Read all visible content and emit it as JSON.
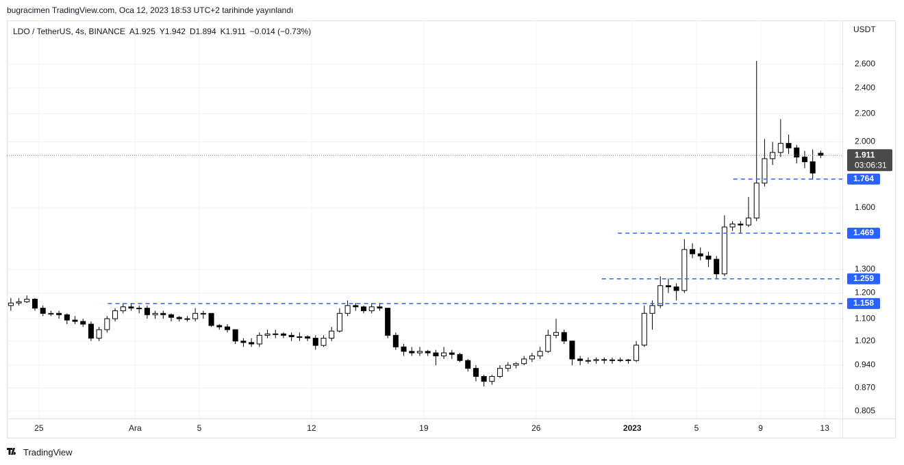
{
  "chart_data": {
    "type": "candlestick",
    "header": "bugracimen TradingView.com, Oca 12, 2023 18:53 UTC+2 tarihinde yayınlandı",
    "legend": [
      "LDO / TetherUS, 4s, BINANCE",
      "A1.925",
      "Y1.942",
      "D1.894",
      "K1.911",
      "−0.014 (−0.73%)"
    ],
    "axis_unit": "USDT",
    "footer": "TradingView",
    "log_scale": true,
    "grid": true,
    "up_color": "#ffffff",
    "down_color": "#000000",
    "wick_color": "#000000",
    "level_color": "#2962ff",
    "xlim": [
      -2,
      50.1
    ],
    "xticks": [
      {
        "value": 0,
        "label": "25"
      },
      {
        "value": 6,
        "label": "Ara"
      },
      {
        "value": 10,
        "label": "5"
      },
      {
        "value": 17,
        "label": "12"
      },
      {
        "value": 24,
        "label": "19"
      },
      {
        "value": 31,
        "label": "26"
      },
      {
        "value": 37,
        "label": "2023"
      },
      {
        "value": 41,
        "label": "5"
      },
      {
        "value": 45,
        "label": "9"
      },
      {
        "value": 49,
        "label": "13"
      }
    ],
    "ylim": [
      0.785,
      3.015
    ],
    "yticks": [
      {
        "value": 0.805,
        "label": "0.805"
      },
      {
        "value": 0.87,
        "label": "0.870"
      },
      {
        "value": 0.94,
        "label": "0.940"
      },
      {
        "value": 1.02,
        "label": "1.020"
      },
      {
        "value": 1.1,
        "label": "1.100"
      },
      {
        "value": 1.2,
        "label": "1.200"
      },
      {
        "value": 1.3,
        "label": "1.300"
      },
      {
        "value": 1.6,
        "label": "1.600"
      },
      {
        "value": 2.0,
        "label": "2.000"
      },
      {
        "value": 2.2,
        "label": "2.200"
      },
      {
        "value": 2.4,
        "label": "2.400"
      },
      {
        "value": 2.6,
        "label": "2.600"
      }
    ],
    "last_price": {
      "value": 1.911,
      "countdown": "03:06:31"
    },
    "levels": [
      {
        "value": 1.764,
        "x_start": 43.3
      },
      {
        "value": 1.469,
        "x_start": 36.1
      },
      {
        "value": 1.259,
        "x_start": 35.1
      },
      {
        "value": 1.158,
        "x_start": 4.3
      }
    ],
    "candles": [
      [
        -1.75,
        1.15,
        1.18,
        1.13,
        1.16
      ],
      [
        -1.25,
        1.16,
        1.18,
        1.15,
        1.165
      ],
      [
        -0.75,
        1.165,
        1.19,
        1.16,
        1.175
      ],
      [
        -0.25,
        1.175,
        1.18,
        1.13,
        1.14
      ],
      [
        0.25,
        1.14,
        1.15,
        1.11,
        1.12
      ],
      [
        0.75,
        1.12,
        1.13,
        1.11,
        1.12
      ],
      [
        1.25,
        1.12,
        1.13,
        1.1,
        1.115
      ],
      [
        1.75,
        1.115,
        1.12,
        1.08,
        1.095
      ],
      [
        2.25,
        1.095,
        1.11,
        1.08,
        1.09
      ],
      [
        2.75,
        1.09,
        1.1,
        1.07,
        1.08
      ],
      [
        3.25,
        1.08,
        1.09,
        1.02,
        1.03
      ],
      [
        3.75,
        1.03,
        1.07,
        1.02,
        1.06
      ],
      [
        4.25,
        1.06,
        1.11,
        1.05,
        1.1
      ],
      [
        4.75,
        1.1,
        1.14,
        1.09,
        1.13
      ],
      [
        5.25,
        1.13,
        1.16,
        1.12,
        1.145
      ],
      [
        5.75,
        1.145,
        1.16,
        1.13,
        1.14
      ],
      [
        6.25,
        1.14,
        1.15,
        1.12,
        1.14
      ],
      [
        6.75,
        1.14,
        1.15,
        1.1,
        1.115
      ],
      [
        7.25,
        1.115,
        1.13,
        1.1,
        1.12
      ],
      [
        7.75,
        1.12,
        1.13,
        1.1,
        1.115
      ],
      [
        8.25,
        1.115,
        1.12,
        1.09,
        1.105
      ],
      [
        8.75,
        1.105,
        1.11,
        1.09,
        1.1
      ],
      [
        9.25,
        1.1,
        1.11,
        1.09,
        1.1
      ],
      [
        9.75,
        1.1,
        1.14,
        1.09,
        1.12
      ],
      [
        10.25,
        1.12,
        1.13,
        1.1,
        1.12
      ],
      [
        10.75,
        1.12,
        1.12,
        1.07,
        1.075
      ],
      [
        11.25,
        1.075,
        1.08,
        1.06,
        1.07
      ],
      [
        11.75,
        1.07,
        1.08,
        1.05,
        1.06
      ],
      [
        12.25,
        1.06,
        1.06,
        1.01,
        1.02
      ],
      [
        12.75,
        1.02,
        1.03,
        1.0,
        1.015
      ],
      [
        13.25,
        1.015,
        1.03,
        1.0,
        1.01
      ],
      [
        13.75,
        1.01,
        1.05,
        1.0,
        1.04
      ],
      [
        14.25,
        1.04,
        1.06,
        1.03,
        1.045
      ],
      [
        14.75,
        1.045,
        1.06,
        1.03,
        1.045
      ],
      [
        15.25,
        1.045,
        1.05,
        1.03,
        1.04
      ],
      [
        15.75,
        1.04,
        1.05,
        1.02,
        1.035
      ],
      [
        16.25,
        1.035,
        1.05,
        1.02,
        1.035
      ],
      [
        16.75,
        1.035,
        1.04,
        1.02,
        1.03
      ],
      [
        17.25,
        1.03,
        1.04,
        0.99,
        1.005
      ],
      [
        17.75,
        1.005,
        1.04,
        1.0,
        1.03
      ],
      [
        18.25,
        1.03,
        1.07,
        1.02,
        1.055
      ],
      [
        18.75,
        1.055,
        1.14,
        1.05,
        1.12
      ],
      [
        19.25,
        1.12,
        1.17,
        1.11,
        1.15
      ],
      [
        19.75,
        1.15,
        1.16,
        1.13,
        1.145
      ],
      [
        20.25,
        1.145,
        1.15,
        1.12,
        1.13
      ],
      [
        20.75,
        1.13,
        1.16,
        1.12,
        1.145
      ],
      [
        21.25,
        1.145,
        1.16,
        1.13,
        1.14
      ],
      [
        21.75,
        1.14,
        1.14,
        1.03,
        1.04
      ],
      [
        22.25,
        1.04,
        1.05,
        0.99,
        1.0
      ],
      [
        22.75,
        1.0,
        1.01,
        0.97,
        0.985
      ],
      [
        23.25,
        0.985,
        1.0,
        0.97,
        0.98
      ],
      [
        23.75,
        0.98,
        1.0,
        0.97,
        0.985
      ],
      [
        24.25,
        0.985,
        0.99,
        0.97,
        0.98
      ],
      [
        24.75,
        0.98,
        0.99,
        0.94,
        0.97
      ],
      [
        25.25,
        0.97,
        1.0,
        0.96,
        0.98
      ],
      [
        25.75,
        0.98,
        0.99,
        0.96,
        0.975
      ],
      [
        26.25,
        0.975,
        0.98,
        0.95,
        0.955
      ],
      [
        26.75,
        0.955,
        0.96,
        0.92,
        0.93
      ],
      [
        27.25,
        0.93,
        0.94,
        0.89,
        0.905
      ],
      [
        27.75,
        0.905,
        0.91,
        0.875,
        0.89
      ],
      [
        28.25,
        0.89,
        0.91,
        0.88,
        0.905
      ],
      [
        28.75,
        0.905,
        0.94,
        0.9,
        0.93
      ],
      [
        29.25,
        0.93,
        0.95,
        0.92,
        0.94
      ],
      [
        29.75,
        0.94,
        0.95,
        0.93,
        0.945
      ],
      [
        30.25,
        0.945,
        0.97,
        0.94,
        0.96
      ],
      [
        30.75,
        0.96,
        0.98,
        0.95,
        0.97
      ],
      [
        31.25,
        0.97,
        1.0,
        0.96,
        0.985
      ],
      [
        31.75,
        0.985,
        1.06,
        0.98,
        1.04
      ],
      [
        32.25,
        1.04,
        1.1,
        1.03,
        1.05
      ],
      [
        32.75,
        1.05,
        1.06,
        1.01,
        1.02
      ],
      [
        33.25,
        1.02,
        1.02,
        0.94,
        0.96
      ],
      [
        33.75,
        0.96,
        0.97,
        0.94,
        0.955
      ],
      [
        34.25,
        0.955,
        0.965,
        0.945,
        0.955
      ],
      [
        34.75,
        0.955,
        0.965,
        0.945,
        0.958
      ],
      [
        35.25,
        0.958,
        0.965,
        0.945,
        0.957
      ],
      [
        35.75,
        0.957,
        0.965,
        0.945,
        0.955
      ],
      [
        36.25,
        0.955,
        0.965,
        0.95,
        0.957
      ],
      [
        36.75,
        0.957,
        0.96,
        0.945,
        0.955
      ],
      [
        37.25,
        0.955,
        1.02,
        0.95,
        1.006
      ],
      [
        37.75,
        1.006,
        1.15,
        1.0,
        1.12
      ],
      [
        38.25,
        1.12,
        1.17,
        1.06,
        1.15
      ],
      [
        38.75,
        1.15,
        1.27,
        1.14,
        1.23
      ],
      [
        39.25,
        1.23,
        1.26,
        1.2,
        1.225
      ],
      [
        39.75,
        1.225,
        1.24,
        1.17,
        1.21
      ],
      [
        40.25,
        1.21,
        1.44,
        1.2,
        1.39
      ],
      [
        40.75,
        1.39,
        1.42,
        1.35,
        1.37
      ],
      [
        41.25,
        1.37,
        1.4,
        1.34,
        1.36
      ],
      [
        41.75,
        1.36,
        1.38,
        1.31,
        1.345
      ],
      [
        42.25,
        1.345,
        1.36,
        1.26,
        1.28
      ],
      [
        42.75,
        1.28,
        1.56,
        1.27,
        1.5
      ],
      [
        43.25,
        1.5,
        1.53,
        1.48,
        1.515
      ],
      [
        43.75,
        1.515,
        1.53,
        1.47,
        1.51
      ],
      [
        44.25,
        1.51,
        1.66,
        1.5,
        1.546
      ],
      [
        44.75,
        1.546,
        2.63,
        1.53,
        1.74
      ],
      [
        45.25,
        1.74,
        2.02,
        1.72,
        1.89
      ],
      [
        45.75,
        1.89,
        2.0,
        1.85,
        1.93
      ],
      [
        46.25,
        1.93,
        2.16,
        1.9,
        1.99
      ],
      [
        46.75,
        1.99,
        2.05,
        1.92,
        1.96
      ],
      [
        47.25,
        1.96,
        1.98,
        1.86,
        1.9
      ],
      [
        47.75,
        1.9,
        1.94,
        1.83,
        1.87
      ],
      [
        48.25,
        1.87,
        1.95,
        1.76,
        1.8
      ],
      [
        48.75,
        1.925,
        1.942,
        1.894,
        1.911
      ]
    ]
  }
}
